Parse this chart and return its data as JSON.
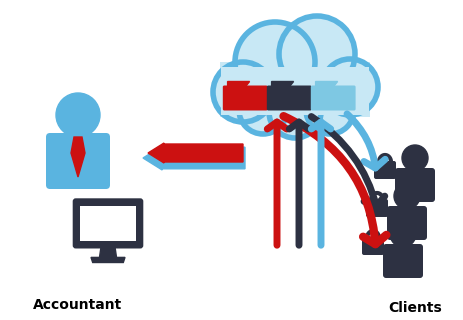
{
  "background_color": "#ffffff",
  "accountant_label": "Accountant",
  "clients_label": "Clients",
  "person_color": "#5ab4e0",
  "tie_color": "#cc1111",
  "dark_color": "#2d3142",
  "cloud_fill": "#c8e8f5",
  "cloud_edge": "#5ab4e0",
  "arrow_red": "#cc1111",
  "arrow_black": "#2d3142",
  "arrow_blue": "#5ab4e0",
  "folder_red": "#cc1111",
  "folder_dark": "#2d3142",
  "folder_blue": "#7ec8e3"
}
